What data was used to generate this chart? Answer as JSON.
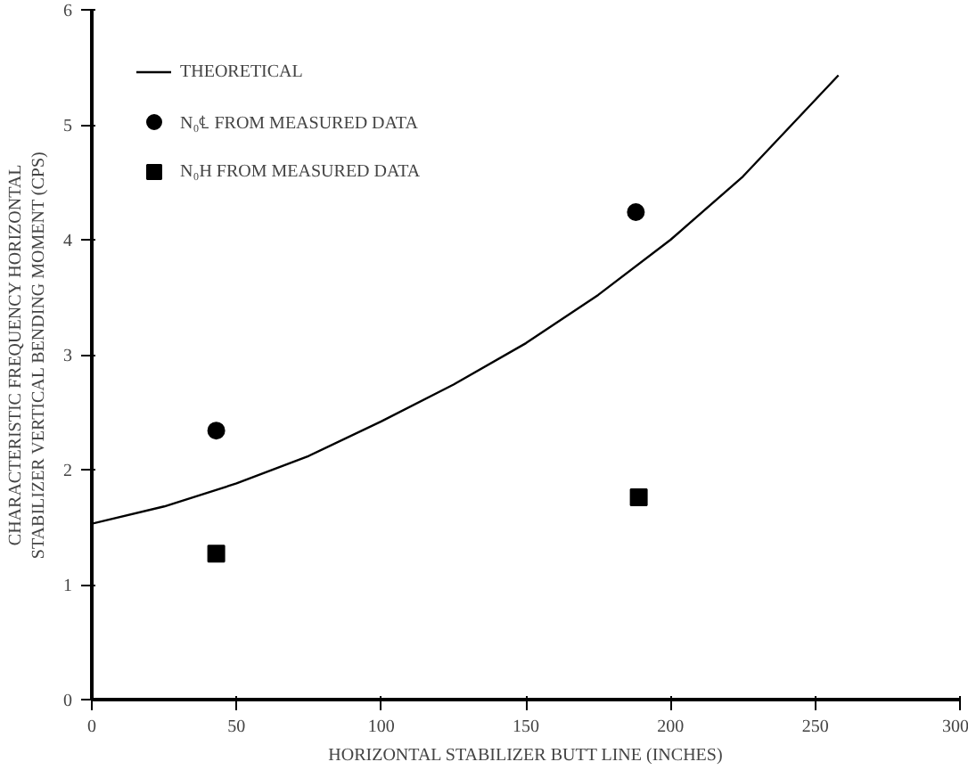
{
  "chart_data": {
    "type": "scatter",
    "xlabel": "HORIZONTAL STABILIZER BUTT LINE (INCHES)",
    "ylabel": "CHARACTERISTIC FREQUENCY HORIZONTAL\nSTABILIZER VERTICAL BENDING MOMENT (CPS)",
    "xlim": [
      0,
      300
    ],
    "xticks": [
      0,
      50,
      100,
      150,
      200,
      250,
      300
    ],
    "ylim": [
      0,
      6
    ],
    "yticks": [
      0,
      1,
      2,
      3,
      4,
      5,
      6
    ],
    "grid": false,
    "legend": "top left",
    "series": [
      {
        "name": "THEORETICAL",
        "type": "line",
        "color": "#000000",
        "line_style": "solid",
        "marker": "none",
        "x": [
          0,
          25,
          50,
          75,
          100,
          125,
          150,
          175,
          200,
          225,
          258
        ],
        "values": [
          1.53,
          1.68,
          1.88,
          2.12,
          2.42,
          2.74,
          3.1,
          3.52,
          4.0,
          4.55,
          5.43
        ]
      },
      {
        "name": "N₀℄ FROM MEASURED DATA",
        "color": "#000000",
        "marker": "circle",
        "x": [
          43,
          188
        ],
        "values": [
          2.34,
          4.24
        ]
      },
      {
        "name": "N₀H FROM MEASURED DATA",
        "color": "#000000",
        "marker": "square",
        "x": [
          43,
          189
        ],
        "values": [
          1.27,
          1.76
        ]
      }
    ]
  }
}
